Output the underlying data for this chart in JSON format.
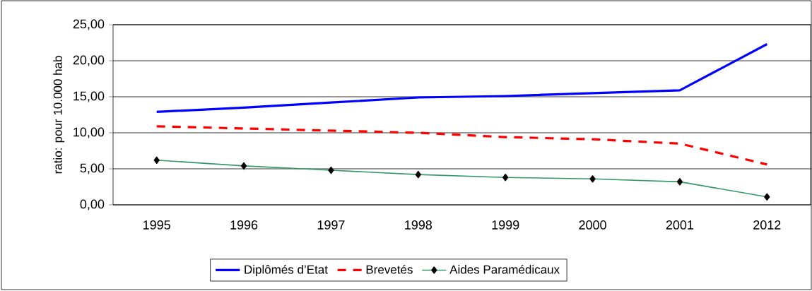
{
  "chart_data": {
    "type": "line",
    "ylabel": "ratio: pour 10.000 hab",
    "categories": [
      "1995",
      "1996",
      "1997",
      "1998",
      "1999",
      "2000",
      "2001",
      "2012"
    ],
    "series": [
      {
        "name": "Diplômés d’Etat",
        "color": "#0000ff",
        "line_style": "solid",
        "marker": "none",
        "values": [
          12.9,
          13.5,
          14.2,
          14.9,
          15.1,
          15.5,
          15.9,
          22.3
        ]
      },
      {
        "name": "Brevetés",
        "color": "#ff0000",
        "line_style": "dashed",
        "marker": "none",
        "values": [
          10.9,
          10.6,
          10.3,
          10.0,
          9.4,
          9.1,
          8.5,
          5.6
        ]
      },
      {
        "name": "Aides Paramédicaux",
        "color": "#339966",
        "line_style": "solid",
        "marker": "diamond",
        "values": [
          6.2,
          5.4,
          4.8,
          4.2,
          3.8,
          3.6,
          3.2,
          1.1
        ]
      }
    ],
    "ylim": [
      0,
      25
    ],
    "yticks": [
      {
        "value": 0,
        "label": "0,00"
      },
      {
        "value": 5,
        "label": "5,00"
      },
      {
        "value": 10,
        "label": "10,00"
      },
      {
        "value": 15,
        "label": "15,00"
      },
      {
        "value": 20,
        "label": "20,00"
      },
      {
        "value": 25,
        "label": "25,00"
      }
    ],
    "grid": "y",
    "legend": "bottom"
  }
}
